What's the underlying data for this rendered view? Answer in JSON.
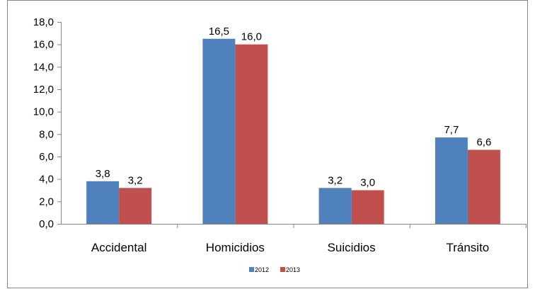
{
  "chart_data": {
    "type": "bar",
    "categories": [
      "Accidental",
      "Homicidios",
      "Suicidios",
      "Tránsito"
    ],
    "series": [
      {
        "name": "2012",
        "color": "#4F81BD",
        "values": [
          3.8,
          16.5,
          3.2,
          7.7
        ],
        "labels": [
          "3,8",
          "16,5",
          "3,2",
          "7,7"
        ]
      },
      {
        "name": "2013",
        "color": "#C0504D",
        "values": [
          3.2,
          16.0,
          3.0,
          6.6
        ],
        "labels": [
          "3,2",
          "16,0",
          "3,0",
          "6,6"
        ]
      }
    ],
    "yticks": [
      "0,0",
      "2,0",
      "4,0",
      "6,0",
      "8,0",
      "10,0",
      "12,0",
      "14,0",
      "16,0",
      "18,0"
    ],
    "ylim": [
      0,
      18
    ],
    "grid": false,
    "legend_position": "bottom"
  }
}
